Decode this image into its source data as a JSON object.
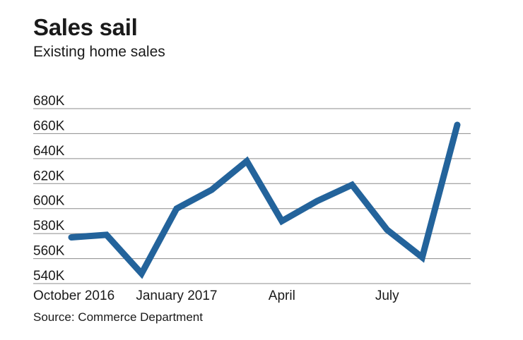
{
  "header": {
    "title": "Sales sail",
    "subtitle": "Existing home sales"
  },
  "footer": {
    "source": "Source: Commerce Department"
  },
  "colors": {
    "line": "#23639b",
    "grid": "#8c8c8c",
    "text": "#1a1a1a"
  },
  "chart_data": {
    "type": "line",
    "title": "Sales sail",
    "subtitle": "Existing home sales",
    "xlabel": "",
    "ylabel": "",
    "ylim": [
      540000,
      680000
    ],
    "y_ticks": [
      540000,
      560000,
      580000,
      600000,
      620000,
      640000,
      660000,
      680000
    ],
    "y_tick_labels": [
      "540K",
      "560K",
      "580K",
      "600K",
      "620K",
      "640K",
      "660K",
      "680K"
    ],
    "x_tick_labels": [
      "October 2016",
      "January 2017",
      "April",
      "July"
    ],
    "x_tick_indices": [
      0,
      3,
      6,
      9
    ],
    "grid": true,
    "legend": "none",
    "series": [
      {
        "values": [
          577000,
          579000,
          548000,
          600000,
          615000,
          638000,
          590000,
          606000,
          619000,
          583000,
          561000,
          667000
        ]
      }
    ]
  }
}
